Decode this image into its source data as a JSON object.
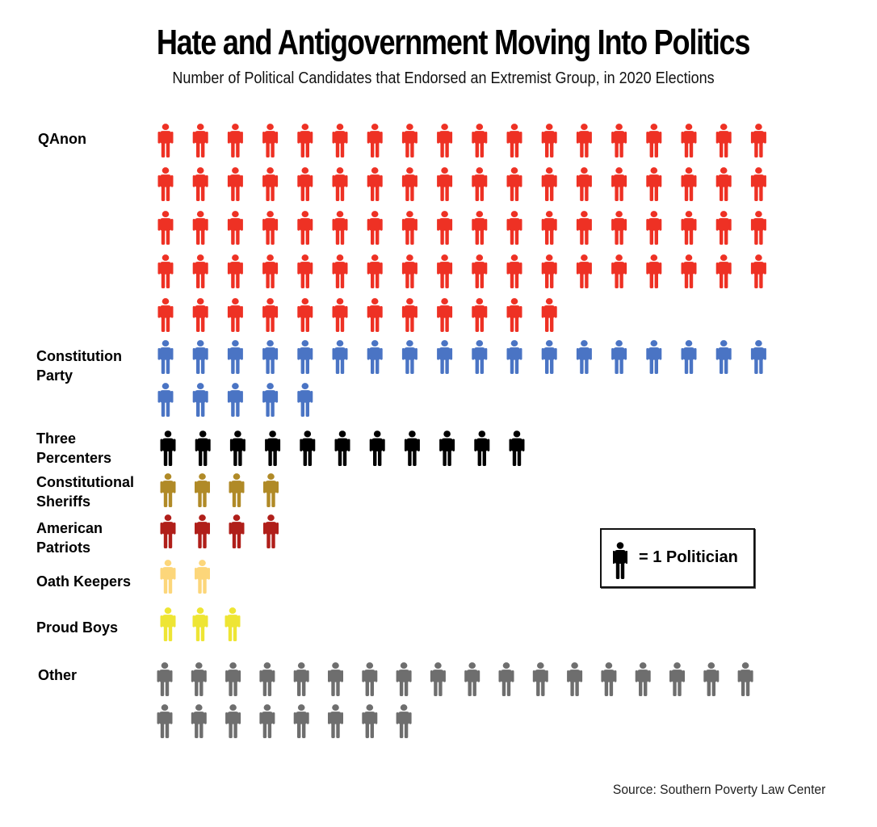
{
  "chart_data": {
    "type": "pictogram",
    "title": "Hate and Antigovernment Moving Into Politics",
    "subtitle": "Number of Political Candidates that Endorsed an Extremist Group, in 2020 Elections",
    "unit_legend": "= 1 Politician",
    "source": "Source: Southern Poverty Law Center",
    "categories": [
      {
        "label_lines": [
          "QAnon"
        ],
        "value": 84,
        "color": "#ee3124"
      },
      {
        "label_lines": [
          "Constitution",
          "Party"
        ],
        "value": 23,
        "color": "#4a74c4"
      },
      {
        "label_lines": [
          "Three",
          "Percenters"
        ],
        "value": 11,
        "color": "#000000"
      },
      {
        "label_lines": [
          "Constitutional",
          "Sheriffs"
        ],
        "value": 4,
        "color": "#b08a27"
      },
      {
        "label_lines": [
          "American",
          "Patriots"
        ],
        "value": 4,
        "color": "#b01f1a"
      },
      {
        "label_lines": [
          "Oath Keepers"
        ],
        "value": 2,
        "color": "#fcd67a"
      },
      {
        "label_lines": [
          "Proud Boys"
        ],
        "value": 3,
        "color": "#eee534"
      },
      {
        "label_lines": [
          "Other"
        ],
        "value": 26,
        "color": "#6e6e6e"
      }
    ]
  }
}
